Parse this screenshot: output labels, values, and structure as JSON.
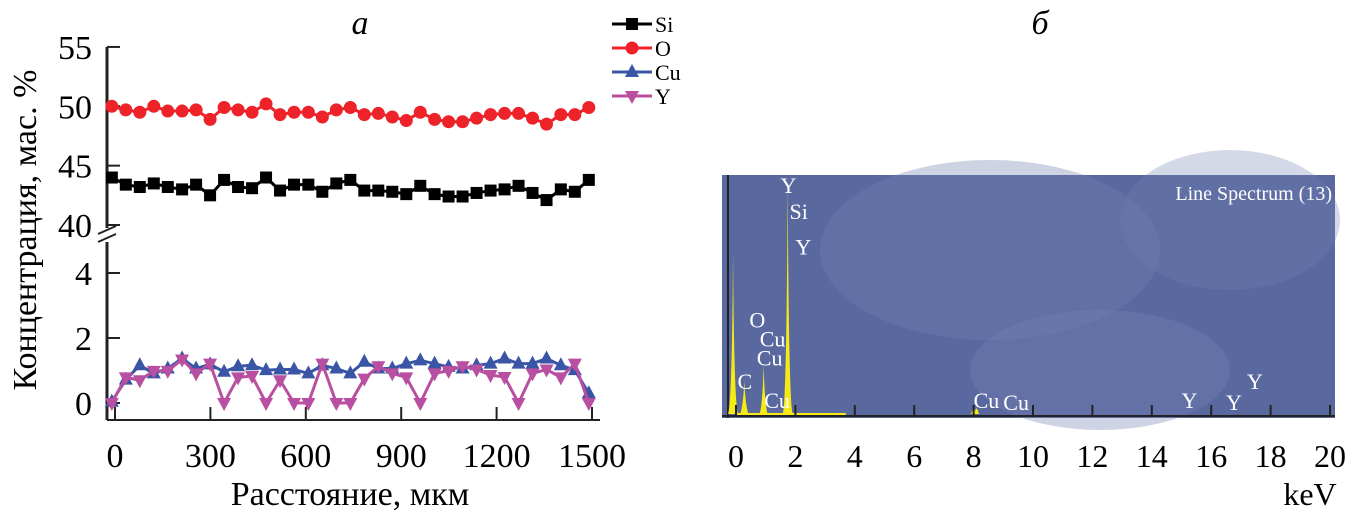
{
  "chart_data": [
    {
      "type": "line",
      "title": "а",
      "xlabel": "Расстояние, мкм",
      "ylabel": "Концентрация, мас. %",
      "xlim": [
        -30,
        1560
      ],
      "ylim_upper": [
        40,
        55
      ],
      "ylim_lower": [
        0,
        4.8
      ],
      "axis_break": true,
      "xticks": [
        0,
        300,
        600,
        900,
        1200,
        1500
      ],
      "yticks_upper": [
        40,
        45,
        50,
        55
      ],
      "yticks_lower": [
        0,
        2,
        4
      ],
      "legend_position": "top-right",
      "x": [
        -10,
        34,
        78,
        122,
        166,
        211,
        255,
        299,
        343,
        387,
        431,
        475,
        519,
        563,
        608,
        652,
        696,
        740,
        784,
        828,
        872,
        916,
        960,
        1005,
        1049,
        1093,
        1137,
        1181,
        1225,
        1269,
        1313,
        1357,
        1402,
        1446,
        1490
      ],
      "series": [
        {
          "name": "Si",
          "color": "#000000",
          "marker": "square",
          "values": [
            44.0,
            43.4,
            43.2,
            43.5,
            43.2,
            43.0,
            43.4,
            42.5,
            43.8,
            43.2,
            43.1,
            44.0,
            42.9,
            43.4,
            43.4,
            42.8,
            43.5,
            43.8,
            42.9,
            42.9,
            42.8,
            42.6,
            43.3,
            42.6,
            42.4,
            42.4,
            42.7,
            42.9,
            43.0,
            43.3,
            42.7,
            42.1,
            43.0,
            42.8,
            43.8
          ]
        },
        {
          "name": "O",
          "color": "#ee2229",
          "marker": "circle",
          "values": [
            50.0,
            49.7,
            49.5,
            50.0,
            49.6,
            49.6,
            49.7,
            48.9,
            49.9,
            49.7,
            49.5,
            50.2,
            49.3,
            49.5,
            49.5,
            49.1,
            49.7,
            49.9,
            49.3,
            49.4,
            49.1,
            48.8,
            49.5,
            48.9,
            48.7,
            48.7,
            49.0,
            49.3,
            49.4,
            49.4,
            49.0,
            48.5,
            49.3,
            49.3,
            49.9
          ]
        },
        {
          "name": "Cu",
          "color": "#3a55a6",
          "marker": "triangle-up",
          "values": [
            0.04,
            0.72,
            1.16,
            0.91,
            1.06,
            1.37,
            1.06,
            1.19,
            0.96,
            1.13,
            1.16,
            1.01,
            1.03,
            1.03,
            0.91,
            1.16,
            1.06,
            0.91,
            1.27,
            1.06,
            1.06,
            1.21,
            1.31,
            1.21,
            1.11,
            1.06,
            1.16,
            1.21,
            1.37,
            1.21,
            1.21,
            1.37,
            1.16,
            1.01,
            0.3
          ]
        },
        {
          "name": "Y",
          "color": "#b94fa0",
          "marker": "triangle-down",
          "values": [
            0,
            0.79,
            0.7,
            0.99,
            0.99,
            1.34,
            0.91,
            1.21,
            0,
            0.79,
            0.83,
            0,
            0.7,
            0,
            0,
            1.21,
            0,
            0,
            0.75,
            1.13,
            0.91,
            0.79,
            0,
            0.91,
            0.99,
            1.13,
            1.03,
            0.86,
            0.8,
            0,
            0.91,
            1.03,
            0.79,
            1.21,
            0
          ]
        }
      ]
    },
    {
      "type": "line",
      "title": "б",
      "xlabel": "keV",
      "xlim": [
        0,
        20
      ],
      "xticks": [
        0,
        2,
        4,
        6,
        8,
        10,
        12,
        14,
        16,
        18,
        20
      ],
      "inset_label": "Line Spectrum (13)",
      "background_color": "#5a68a0",
      "line_color": "#f5ea14",
      "peaks": [
        {
          "energy": -0.1,
          "height": 0.68
        },
        {
          "energy": 0.28,
          "height": 0.14
        },
        {
          "energy": 0.93,
          "height": 0.21
        },
        {
          "energy": 1.74,
          "height": 1.0
        },
        {
          "energy": 8.05,
          "height": 0.01
        }
      ],
      "peak_labels": [
        {
          "text": "Y",
          "energy": 1.5,
          "level": 0.97
        },
        {
          "text": "Si",
          "energy": 1.8,
          "level": 0.86
        },
        {
          "text": "Y",
          "energy": 2.0,
          "level": 0.71
        },
        {
          "text": "O",
          "energy": 0.45,
          "level": 0.4
        },
        {
          "text": "Cu",
          "energy": 0.8,
          "level": 0.32
        },
        {
          "text": "Cu",
          "energy": 0.7,
          "level": 0.24
        },
        {
          "text": "C",
          "energy": 0.05,
          "level": 0.14
        },
        {
          "text": "Cu",
          "energy": 0.95,
          "level": 0.06
        },
        {
          "text": "Cu",
          "energy": 8.0,
          "level": 0.06
        },
        {
          "text": "Cu",
          "energy": 9.0,
          "level": 0.05
        },
        {
          "text": "Y",
          "energy": 15.0,
          "level": 0.06
        },
        {
          "text": "Y",
          "energy": 16.5,
          "level": 0.05
        },
        {
          "text": "Y",
          "energy": 17.2,
          "level": 0.14
        }
      ]
    }
  ]
}
